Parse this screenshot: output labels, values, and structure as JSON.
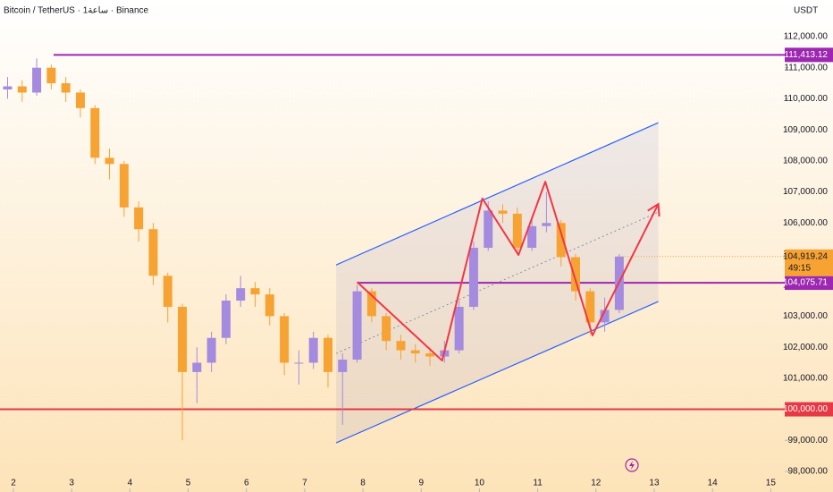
{
  "chart_data": {
    "type": "candlestick",
    "title": "Bitcoin / TetherUS · 1ساعة · Binance",
    "currency": "USDT",
    "up_color": "#a58be0",
    "down_color": "#f7a333",
    "x": [
      1.9,
      2.15,
      2.4,
      2.65,
      2.9,
      3.15,
      3.4,
      3.65,
      3.9,
      4.15,
      4.4,
      4.65,
      4.9,
      5.15,
      5.4,
      5.65,
      5.9,
      6.15,
      6.4,
      6.65,
      6.9,
      7.15,
      7.4,
      7.65,
      7.9,
      8.15,
      8.4,
      8.65,
      8.9,
      9.15,
      9.4,
      9.65,
      9.9,
      10.15,
      10.4,
      10.65,
      10.9,
      11.15,
      11.4,
      11.65,
      11.9,
      12.15,
      12.4
    ],
    "open": [
      110300,
      110400,
      110200,
      111000,
      110500,
      110200,
      109700,
      108100,
      107900,
      106500,
      105800,
      104300,
      103300,
      101200,
      101500,
      102300,
      103500,
      103900,
      103700,
      103000,
      101500,
      101500,
      102300,
      101200,
      101600,
      103800,
      103000,
      102200,
      101900,
      101800,
      101700,
      101900,
      103300,
      105200,
      106400,
      106300,
      105200,
      105900,
      106000,
      104900,
      103800,
      102800,
      103200
    ],
    "high": [
      110700,
      110600,
      111300,
      111100,
      110700,
      110300,
      109800,
      108400,
      108000,
      106700,
      106000,
      104400,
      103400,
      102000,
      102500,
      103700,
      104300,
      104100,
      103900,
      103100,
      101900,
      102500,
      102400,
      101800,
      104000,
      103900,
      103100,
      102400,
      102100,
      102000,
      102200,
      103500,
      105400,
      106700,
      106600,
      106500,
      106200,
      107000,
      106100,
      105000,
      103900,
      103600,
      105000
    ],
    "low": [
      110000,
      109900,
      110100,
      110300,
      109900,
      109400,
      107900,
      107400,
      106200,
      105400,
      104000,
      102800,
      99000,
      100200,
      101200,
      102100,
      103300,
      103300,
      102700,
      101100,
      100800,
      101300,
      100700,
      99500,
      101500,
      102800,
      101900,
      101600,
      101500,
      101400,
      101500,
      101800,
      103200,
      105100,
      106000,
      105000,
      105100,
      105700,
      104600,
      103500,
      102400,
      102500,
      103100
    ],
    "close": [
      110400,
      110200,
      111000,
      110500,
      110200,
      109700,
      108100,
      107900,
      106500,
      105800,
      104300,
      103300,
      101200,
      101500,
      102300,
      103500,
      103900,
      103700,
      103000,
      101500,
      101500,
      102300,
      101200,
      101600,
      103800,
      103000,
      102200,
      101900,
      101800,
      101700,
      101900,
      103300,
      105200,
      106400,
      106300,
      105200,
      105900,
      106000,
      104900,
      103800,
      102800,
      103200,
      104919.24
    ],
    "last_price": {
      "value": 104919.24,
      "label": "104,919.24"
    },
    "countdown": "49:15",
    "xlim": [
      1.77,
      15.24
    ],
    "ylim": [
      97337,
      113181
    ],
    "xticks": [
      2,
      3,
      4,
      5,
      6,
      7,
      8,
      9,
      10,
      11,
      12,
      13,
      14,
      15
    ],
    "yticks": [
      {
        "value": 98000,
        "label": "98,000.00"
      },
      {
        "value": 99000,
        "label": "99,000.00"
      },
      {
        "value": 100000,
        "label": "100,000.00"
      },
      {
        "value": 101000,
        "label": "101,000.00"
      },
      {
        "value": 102000,
        "label": "102,000.00"
      },
      {
        "value": 103000,
        "label": "103,000.00"
      },
      {
        "value": 104000,
        "label": "104,000.00"
      },
      {
        "value": 105000,
        "label": "105,000.00"
      },
      {
        "value": 106000,
        "label": "106,000.00"
      },
      {
        "value": 107000,
        "label": "107,000.00"
      },
      {
        "value": 108000,
        "label": "108,000.00"
      },
      {
        "value": 109000,
        "label": "109,000.00"
      },
      {
        "value": 110000,
        "label": "110,000.00"
      },
      {
        "value": 111000,
        "label": "111,000.00"
      },
      {
        "value": 112000,
        "label": "112,000.00"
      }
    ],
    "levels": [
      {
        "value": 111413.12,
        "label": "111,413.12",
        "from": 2.69,
        "color": "#9c27b0"
      },
      {
        "value": 104075.71,
        "label": "104,075.71",
        "from": 7.9,
        "color": "#9c27b0"
      },
      {
        "value": 100000,
        "label": "100,000.00",
        "from": 1.77,
        "color": "#e53945"
      }
    ],
    "channel": {
      "x": [
        7.54,
        13.07,
        13.07,
        7.54
      ],
      "y": [
        104650,
        109230,
        103470,
        98920
      ],
      "color": "#2962ff"
    },
    "midline": {
      "x": [
        7.54,
        13.07
      ],
      "y": [
        101800,
        106350
      ]
    },
    "zigzag": {
      "x": [
        7.9,
        9.36,
        10.05,
        10.67,
        11.13,
        11.94,
        13.07
      ],
      "y": [
        104100,
        101570,
        106790,
        104970,
        107330,
        102380,
        106610
      ],
      "color": "#f23645"
    }
  }
}
